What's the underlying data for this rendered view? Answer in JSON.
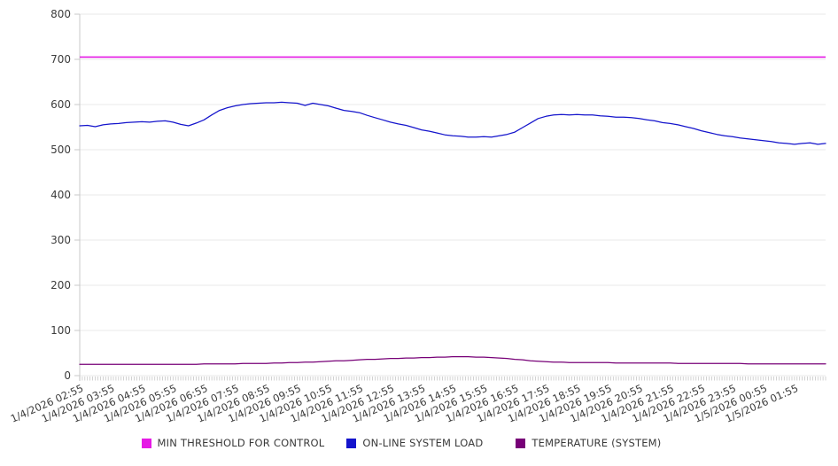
{
  "chart_data": {
    "type": "line",
    "title": "",
    "xlabel": "",
    "ylabel": "",
    "ylim": [
      0,
      800
    ],
    "y_ticks": [
      0,
      100,
      200,
      300,
      400,
      500,
      600,
      700,
      800
    ],
    "grid": "horizontal",
    "legend_position": "bottom-center",
    "x_range": [
      "1/4/2026 02:55",
      "1/5/2026 02:55"
    ],
    "sample_interval_minutes": 15,
    "x_minor_tick_count": 288,
    "x_tick_labels": [
      "1/4/2026 02:55",
      "1/4/2026 03:55",
      "1/4/2026 04:55",
      "1/4/2026 05:55",
      "1/4/2026 06:55",
      "1/4/2026 07:55",
      "1/4/2026 08:55",
      "1/4/2026 09:55",
      "1/4/2026 10:55",
      "1/4/2026 11:55",
      "1/4/2026 12:55",
      "1/4/2026 13:55",
      "1/4/2026 14:55",
      "1/4/2026 15:55",
      "1/4/2026 16:55",
      "1/4/2026 17:55",
      "1/4/2026 18:55",
      "1/4/2026 19:55",
      "1/4/2026 20:55",
      "1/4/2026 21:55",
      "1/4/2026 22:55",
      "1/4/2026 23:55",
      "1/5/2026 00:55",
      "1/5/2026 01:55"
    ],
    "series": [
      {
        "name": "MIN THRESHOLD FOR CONTROL",
        "color": "#e519e5",
        "style": "constant-line",
        "value": 705
      },
      {
        "name": "ON-LINE SYSTEM LOAD",
        "color": "#1414cc",
        "style": "line",
        "values": [
          553,
          554,
          551,
          555,
          557,
          558,
          560,
          561,
          562,
          561,
          563,
          564,
          561,
          556,
          553,
          559,
          566,
          577,
          587,
          593,
          597,
          600,
          602,
          603,
          604,
          604,
          605,
          604,
          603,
          598,
          603,
          600,
          597,
          592,
          587,
          585,
          582,
          576,
          571,
          566,
          561,
          557,
          554,
          549,
          544,
          541,
          537,
          533,
          531,
          530,
          528,
          528,
          529,
          528,
          531,
          534,
          539,
          549,
          559,
          569,
          574,
          577,
          578,
          577,
          578,
          577,
          577,
          575,
          574,
          572,
          572,
          571,
          569,
          566,
          564,
          560,
          558,
          555,
          551,
          547,
          542,
          538,
          534,
          531,
          529,
          526,
          524,
          522,
          520,
          518,
          515,
          514,
          512,
          514,
          515,
          512,
          514
        ]
      },
      {
        "name": "TEMPERATURE (SYSTEM)",
        "color": "#770077",
        "style": "line",
        "values": [
          25,
          25,
          25,
          25,
          25,
          25,
          25,
          25,
          25,
          25,
          25,
          25,
          25,
          25,
          25,
          25,
          26,
          26,
          26,
          26,
          26,
          27,
          27,
          27,
          27,
          28,
          28,
          29,
          29,
          30,
          30,
          31,
          32,
          33,
          33,
          34,
          35,
          36,
          36,
          37,
          38,
          38,
          39,
          39,
          40,
          40,
          41,
          41,
          42,
          42,
          42,
          41,
          41,
          40,
          39,
          38,
          36,
          35,
          33,
          32,
          31,
          30,
          30,
          29,
          29,
          29,
          29,
          29,
          29,
          28,
          28,
          28,
          28,
          28,
          28,
          28,
          28,
          27,
          27,
          27,
          27,
          27,
          27,
          27,
          27,
          27,
          26,
          26,
          26,
          26,
          26,
          26,
          26,
          26,
          26,
          26,
          26
        ]
      }
    ]
  },
  "axis_colors": {
    "grid": "#e9e9e9",
    "axis_line": "#c9c9c9",
    "minor_tick": "#b5b5b5",
    "tick_label": "#3c3c3c"
  }
}
